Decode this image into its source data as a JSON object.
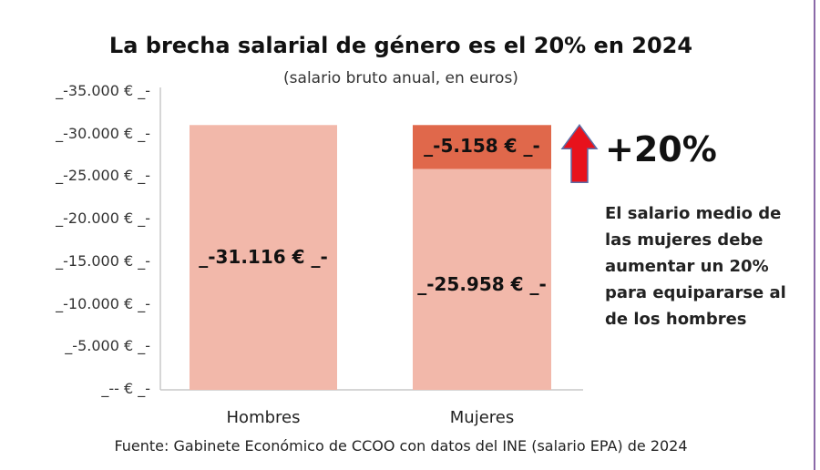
{
  "chart_data": {
    "type": "bar",
    "stacked": true,
    "title": "La brecha salarial de género es el 20% en 2024",
    "subtitle": "(salario bruto anual, en euros)",
    "categories": [
      "Hombres",
      "Mujeres"
    ],
    "series": [
      {
        "values": [
          31116,
          25958
        ],
        "labels": [
          "_-31.116 € _-",
          "_-25.958 € _-"
        ],
        "color": "#f2b8aa"
      },
      {
        "values": [
          0,
          5158
        ],
        "labels": [
          "",
          "_-5.158 € _-"
        ],
        "color": "#e0684b"
      }
    ],
    "ylim": [
      0,
      35000
    ],
    "yticks": [
      0,
      5000,
      10000,
      15000,
      20000,
      25000,
      30000,
      35000
    ],
    "ytick_labels": [
      "_--  € _-",
      "_-5.000 € _-",
      "_-10.000 € _-",
      "_-15.000 € _-",
      "_-20.000 € _-",
      "_-25.000 € _-",
      "_-30.000 € _-",
      "_-35.000 € _-"
    ],
    "grid": false,
    "annotation": {
      "percent": "+20%",
      "arrow_icon": "up-arrow-icon",
      "arrow_color": "#e8121c",
      "note": "El salario medio de las mujeres debe aumentar un 20% para equipararse al de los hombres"
    },
    "source": "Fuente: Gabinete Económico  de CCOO con datos del INE (salario EPA) de 2024"
  }
}
